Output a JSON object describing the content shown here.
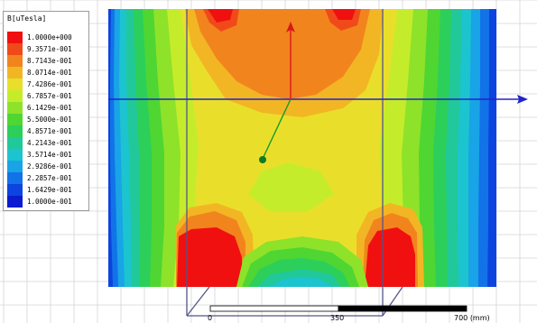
{
  "legend": {
    "title": "B[uTesla]",
    "entries": [
      {
        "label": "1.0000e+000",
        "color": "#f01010"
      },
      {
        "label": "9.3571e-001",
        "color": "#f04a1a"
      },
      {
        "label": "8.7143e-001",
        "color": "#f2841e"
      },
      {
        "label": "8.0714e-001",
        "color": "#f2b624"
      },
      {
        "label": "7.4286e-001",
        "color": "#e9df2a"
      },
      {
        "label": "6.7857e-001",
        "color": "#c5ec2a"
      },
      {
        "label": "6.1429e-001",
        "color": "#8ee22a"
      },
      {
        "label": "5.5000e-001",
        "color": "#4fd632"
      },
      {
        "label": "4.8571e-001",
        "color": "#2ccf5a"
      },
      {
        "label": "4.2143e-001",
        "color": "#21c89a"
      },
      {
        "label": "3.5714e-001",
        "color": "#1cc4cf"
      },
      {
        "label": "2.9286e-001",
        "color": "#18a4e6"
      },
      {
        "label": "2.2857e-001",
        "color": "#1272e8"
      },
      {
        "label": "1.6429e-001",
        "color": "#0c44df"
      },
      {
        "label": "1.0000e-001",
        "color": "#0c1ad0"
      }
    ]
  },
  "scale_bar": {
    "labels": [
      "0",
      "350",
      "700 (mm)"
    ]
  },
  "colors": {
    "grid": "#d4d4d4",
    "axis_blue": "#2323c8",
    "axis_red": "#d81818",
    "axis_green": "#159a2c",
    "frame": "#55558a"
  }
}
